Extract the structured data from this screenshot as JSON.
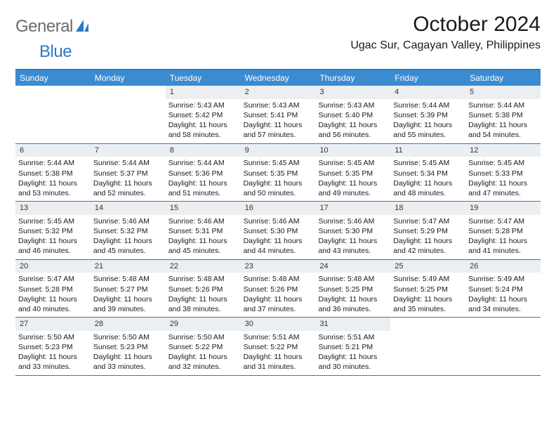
{
  "brand": {
    "part1": "General",
    "part2": "Blue"
  },
  "title": "October 2024",
  "location": "Ugac Sur, Cagayan Valley, Philippines",
  "colors": {
    "header_bg": "#3b8bd1",
    "border": "#2b7bc3",
    "daynum_bg": "#eceff1",
    "logo_gray": "#6b6b6b",
    "logo_blue": "#2b7bc3"
  },
  "dayNames": [
    "Sunday",
    "Monday",
    "Tuesday",
    "Wednesday",
    "Thursday",
    "Friday",
    "Saturday"
  ],
  "weeks": [
    [
      {
        "n": "",
        "sr": "",
        "ss": "",
        "dl": "",
        "empty": true
      },
      {
        "n": "",
        "sr": "",
        "ss": "",
        "dl": "",
        "empty": true
      },
      {
        "n": "1",
        "sr": "Sunrise: 5:43 AM",
        "ss": "Sunset: 5:42 PM",
        "dl": "Daylight: 11 hours and 58 minutes."
      },
      {
        "n": "2",
        "sr": "Sunrise: 5:43 AM",
        "ss": "Sunset: 5:41 PM",
        "dl": "Daylight: 11 hours and 57 minutes."
      },
      {
        "n": "3",
        "sr": "Sunrise: 5:43 AM",
        "ss": "Sunset: 5:40 PM",
        "dl": "Daylight: 11 hours and 56 minutes."
      },
      {
        "n": "4",
        "sr": "Sunrise: 5:44 AM",
        "ss": "Sunset: 5:39 PM",
        "dl": "Daylight: 11 hours and 55 minutes."
      },
      {
        "n": "5",
        "sr": "Sunrise: 5:44 AM",
        "ss": "Sunset: 5:38 PM",
        "dl": "Daylight: 11 hours and 54 minutes."
      }
    ],
    [
      {
        "n": "6",
        "sr": "Sunrise: 5:44 AM",
        "ss": "Sunset: 5:38 PM",
        "dl": "Daylight: 11 hours and 53 minutes."
      },
      {
        "n": "7",
        "sr": "Sunrise: 5:44 AM",
        "ss": "Sunset: 5:37 PM",
        "dl": "Daylight: 11 hours and 52 minutes."
      },
      {
        "n": "8",
        "sr": "Sunrise: 5:44 AM",
        "ss": "Sunset: 5:36 PM",
        "dl": "Daylight: 11 hours and 51 minutes."
      },
      {
        "n": "9",
        "sr": "Sunrise: 5:45 AM",
        "ss": "Sunset: 5:35 PM",
        "dl": "Daylight: 11 hours and 50 minutes."
      },
      {
        "n": "10",
        "sr": "Sunrise: 5:45 AM",
        "ss": "Sunset: 5:35 PM",
        "dl": "Daylight: 11 hours and 49 minutes."
      },
      {
        "n": "11",
        "sr": "Sunrise: 5:45 AM",
        "ss": "Sunset: 5:34 PM",
        "dl": "Daylight: 11 hours and 48 minutes."
      },
      {
        "n": "12",
        "sr": "Sunrise: 5:45 AM",
        "ss": "Sunset: 5:33 PM",
        "dl": "Daylight: 11 hours and 47 minutes."
      }
    ],
    [
      {
        "n": "13",
        "sr": "Sunrise: 5:45 AM",
        "ss": "Sunset: 5:32 PM",
        "dl": "Daylight: 11 hours and 46 minutes."
      },
      {
        "n": "14",
        "sr": "Sunrise: 5:46 AM",
        "ss": "Sunset: 5:32 PM",
        "dl": "Daylight: 11 hours and 45 minutes."
      },
      {
        "n": "15",
        "sr": "Sunrise: 5:46 AM",
        "ss": "Sunset: 5:31 PM",
        "dl": "Daylight: 11 hours and 45 minutes."
      },
      {
        "n": "16",
        "sr": "Sunrise: 5:46 AM",
        "ss": "Sunset: 5:30 PM",
        "dl": "Daylight: 11 hours and 44 minutes."
      },
      {
        "n": "17",
        "sr": "Sunrise: 5:46 AM",
        "ss": "Sunset: 5:30 PM",
        "dl": "Daylight: 11 hours and 43 minutes."
      },
      {
        "n": "18",
        "sr": "Sunrise: 5:47 AM",
        "ss": "Sunset: 5:29 PM",
        "dl": "Daylight: 11 hours and 42 minutes."
      },
      {
        "n": "19",
        "sr": "Sunrise: 5:47 AM",
        "ss": "Sunset: 5:28 PM",
        "dl": "Daylight: 11 hours and 41 minutes."
      }
    ],
    [
      {
        "n": "20",
        "sr": "Sunrise: 5:47 AM",
        "ss": "Sunset: 5:28 PM",
        "dl": "Daylight: 11 hours and 40 minutes."
      },
      {
        "n": "21",
        "sr": "Sunrise: 5:48 AM",
        "ss": "Sunset: 5:27 PM",
        "dl": "Daylight: 11 hours and 39 minutes."
      },
      {
        "n": "22",
        "sr": "Sunrise: 5:48 AM",
        "ss": "Sunset: 5:26 PM",
        "dl": "Daylight: 11 hours and 38 minutes."
      },
      {
        "n": "23",
        "sr": "Sunrise: 5:48 AM",
        "ss": "Sunset: 5:26 PM",
        "dl": "Daylight: 11 hours and 37 minutes."
      },
      {
        "n": "24",
        "sr": "Sunrise: 5:48 AM",
        "ss": "Sunset: 5:25 PM",
        "dl": "Daylight: 11 hours and 36 minutes."
      },
      {
        "n": "25",
        "sr": "Sunrise: 5:49 AM",
        "ss": "Sunset: 5:25 PM",
        "dl": "Daylight: 11 hours and 35 minutes."
      },
      {
        "n": "26",
        "sr": "Sunrise: 5:49 AM",
        "ss": "Sunset: 5:24 PM",
        "dl": "Daylight: 11 hours and 34 minutes."
      }
    ],
    [
      {
        "n": "27",
        "sr": "Sunrise: 5:50 AM",
        "ss": "Sunset: 5:23 PM",
        "dl": "Daylight: 11 hours and 33 minutes."
      },
      {
        "n": "28",
        "sr": "Sunrise: 5:50 AM",
        "ss": "Sunset: 5:23 PM",
        "dl": "Daylight: 11 hours and 33 minutes."
      },
      {
        "n": "29",
        "sr": "Sunrise: 5:50 AM",
        "ss": "Sunset: 5:22 PM",
        "dl": "Daylight: 11 hours and 32 minutes."
      },
      {
        "n": "30",
        "sr": "Sunrise: 5:51 AM",
        "ss": "Sunset: 5:22 PM",
        "dl": "Daylight: 11 hours and 31 minutes."
      },
      {
        "n": "31",
        "sr": "Sunrise: 5:51 AM",
        "ss": "Sunset: 5:21 PM",
        "dl": "Daylight: 11 hours and 30 minutes."
      },
      {
        "n": "",
        "sr": "",
        "ss": "",
        "dl": "",
        "empty": true
      },
      {
        "n": "",
        "sr": "",
        "ss": "",
        "dl": "",
        "empty": true
      }
    ]
  ]
}
